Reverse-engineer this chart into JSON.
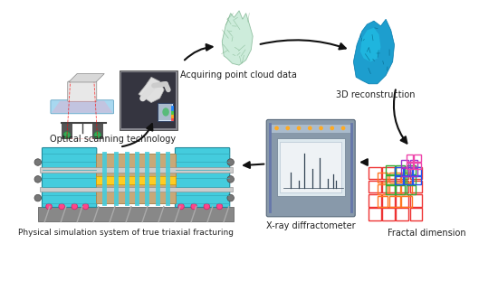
{
  "background_color": "#ffffff",
  "fig_width": 5.5,
  "fig_height": 3.11,
  "dpi": 100,
  "labels": {
    "optical": "Optical scanning technology",
    "point_cloud": "Acquiring point cloud data",
    "reconstruction": "3D reconstruction",
    "physical": "Physical simulation system of true triaxial fracturing",
    "xray": "X-ray diffractometer",
    "fractal": "Fractal dimension"
  },
  "label_fontsize": 7.0,
  "label_color": "#222222",
  "arrow_color": "#111111",
  "arrow_lw": 1.5,
  "arrow_ms": 12
}
